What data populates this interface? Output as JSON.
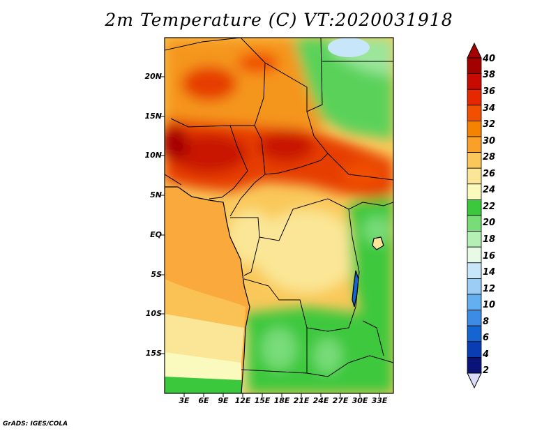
{
  "title": "2m Temperature (C) VT:2020031918",
  "credit": "GrADS: IGES/COLA",
  "map": {
    "region": "Central Africa",
    "latitude_labels": [
      "20N",
      "15N",
      "10N",
      "5N",
      "EQ",
      "5S",
      "10S",
      "15S"
    ],
    "longitude_labels": [
      "3E",
      "6E",
      "9E",
      "12E",
      "15E",
      "18E",
      "21E",
      "24E",
      "27E",
      "30E",
      "33E"
    ]
  },
  "colorbar": {
    "labels": [
      "40",
      "38",
      "36",
      "34",
      "32",
      "30",
      "28",
      "26",
      "24",
      "22",
      "20",
      "18",
      "16",
      "14",
      "12",
      "10",
      "8",
      "6",
      "4",
      "2"
    ],
    "colors": [
      "#a50000",
      "#c80a00",
      "#e62800",
      "#f05000",
      "#f58200",
      "#faa028",
      "#fac85a",
      "#fae696",
      "#fafabe",
      "#3cc83c",
      "#78dc78",
      "#b4f0b4",
      "#e6fae6",
      "#c8e6fa",
      "#9bcdf5",
      "#64aff0",
      "#3c8ce6",
      "#1464d2",
      "#0a3cb4",
      "#0a1478"
    ],
    "below_color": "#dcdcfa"
  }
}
